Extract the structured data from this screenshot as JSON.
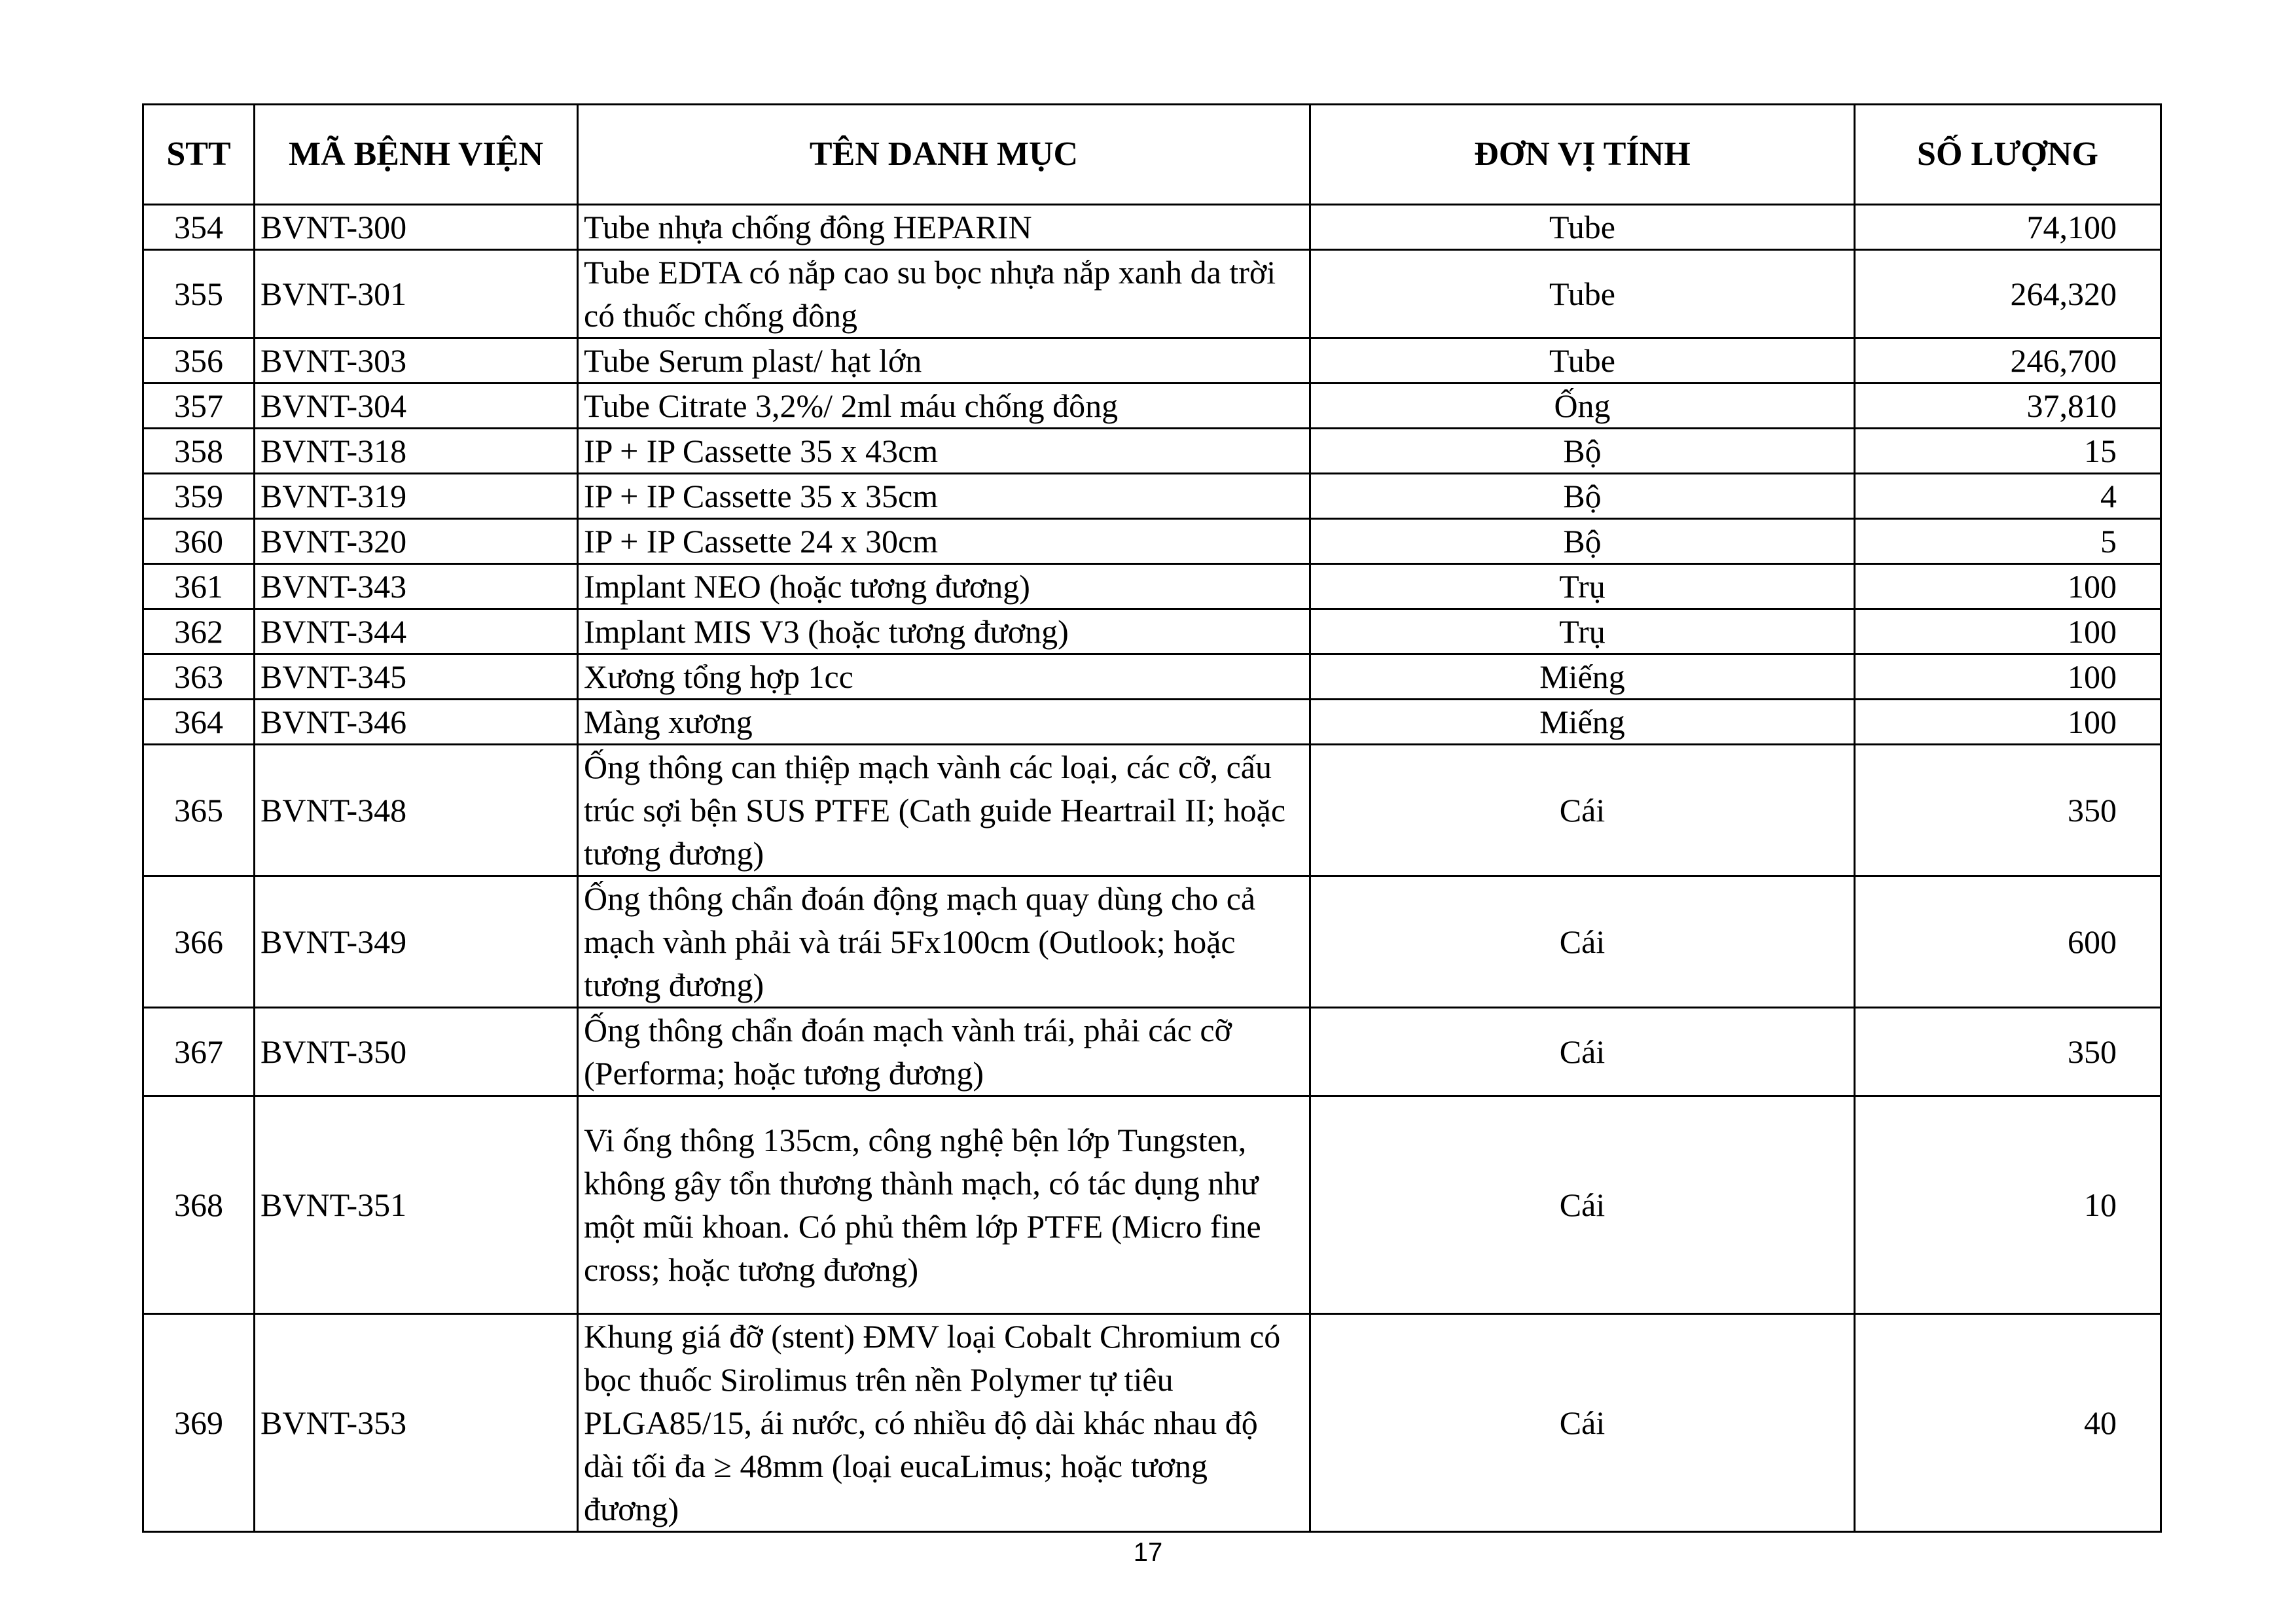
{
  "table": {
    "headers": [
      "STT",
      "MÃ BỆNH VIỆN",
      "TÊN DANH MỤC",
      "ĐƠN VỊ TÍNH",
      "SỐ LƯỢNG"
    ],
    "rows": [
      {
        "stt": "354",
        "code": "BVNT-300",
        "name": "Tube nhựa chống đông HEPARIN",
        "unit": "Tube",
        "qty": "74,100"
      },
      {
        "stt": "355",
        "code": "BVNT-301",
        "name": "Tube EDTA có nắp cao su bọc nhựa nắp xanh da trời có thuốc chống đông",
        "unit": "Tube",
        "qty": "264,320"
      },
      {
        "stt": "356",
        "code": "BVNT-303",
        "name": "Tube Serum plast/ hạt lớn",
        "unit": "Tube",
        "qty": "246,700"
      },
      {
        "stt": "357",
        "code": "BVNT-304",
        "name": "Tube Citrate 3,2%/ 2ml máu chống đông",
        "unit": "Ống",
        "qty": "37,810"
      },
      {
        "stt": "358",
        "code": "BVNT-318",
        "name": "IP + IP Cassette 35 x 43cm",
        "unit": "Bộ",
        "qty": "15"
      },
      {
        "stt": "359",
        "code": "BVNT-319",
        "name": "IP + IP Cassette 35 x 35cm",
        "unit": "Bộ",
        "qty": "4"
      },
      {
        "stt": "360",
        "code": "BVNT-320",
        "name": "IP + IP Cassette 24 x 30cm",
        "unit": "Bộ",
        "qty": "5"
      },
      {
        "stt": "361",
        "code": "BVNT-343",
        "name": "Implant NEO (hoặc tương đương)",
        "unit": "Trụ",
        "qty": "100"
      },
      {
        "stt": "362",
        "code": "BVNT-344",
        "name": "Implant MIS V3 (hoặc tương đương)",
        "unit": "Trụ",
        "qty": "100"
      },
      {
        "stt": "363",
        "code": "BVNT-345",
        "name": "Xương tổng hợp 1cc",
        "unit": "Miếng",
        "qty": "100"
      },
      {
        "stt": "364",
        "code": "BVNT-346",
        "name": "Màng xương",
        "unit": "Miếng",
        "qty": "100"
      },
      {
        "stt": "365",
        "code": "BVNT-348",
        "name": "Ống thông can thiệp mạch vành các loại, các cỡ, cấu trúc sợi bện SUS PTFE (Cath guide Heartrail II; hoặc tương đương)",
        "unit": "Cái",
        "qty": "350"
      },
      {
        "stt": "366",
        "code": "BVNT-349",
        "name": "Ống thông chẩn đoán động mạch quay dùng cho cả mạch vành phải và trái 5Fx100cm (Outlook; hoặc tương đương)",
        "unit": "Cái",
        "qty": "600"
      },
      {
        "stt": "367",
        "code": "BVNT-350",
        "name": "Ống thông chẩn đoán mạch vành trái, phải các cỡ (Performa; hoặc tương đương)",
        "unit": "Cái",
        "qty": "350"
      },
      {
        "stt": "368",
        "code": "BVNT-351",
        "name": "Vi ống thông 135cm, công nghệ bện lớp Tungsten, không gây tổn thương thành mạch, có tác dụng như một mũi khoan. Có phủ thêm lớp PTFE (Micro fine cross; hoặc tương đương)",
        "unit": "Cái",
        "qty": "10"
      },
      {
        "stt": "369",
        "code": "BVNT-353",
        "name": "Khung giá đỡ (stent) ĐMV loại Cobalt Chromium có bọc thuốc Sirolimus trên nền Polymer tự tiêu PLGA85/15, ái nước, có nhiều độ dài khác nhau độ dài tối đa ≥ 48mm (loại eucaLimus; hoặc tương đương)",
        "unit": "Cái",
        "qty": "40"
      }
    ]
  },
  "page_number": "17"
}
